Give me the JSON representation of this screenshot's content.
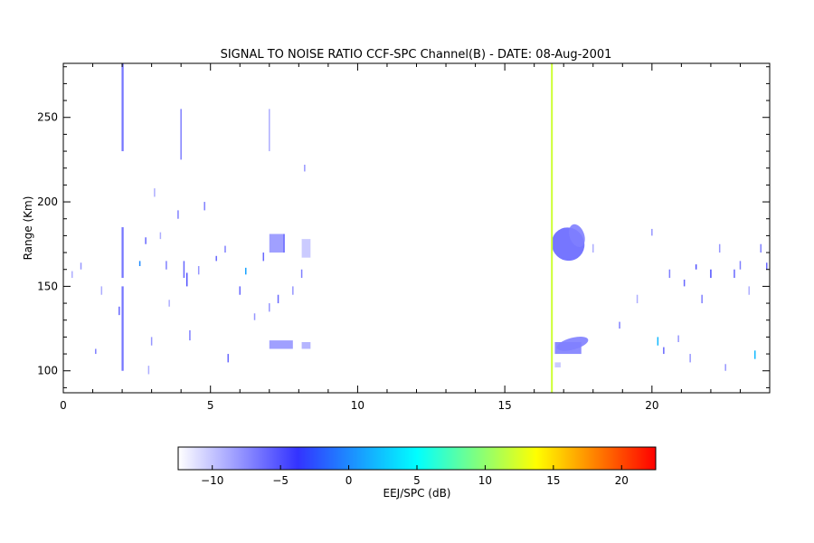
{
  "chart_data": {
    "type": "heatmap",
    "title": "SIGNAL TO NOISE RATIO CCF-SPC Channel(B) - DATE: 08-Aug-2001",
    "xlabel": "",
    "ylabel": "Range (Km)",
    "xlim": [
      0,
      24
    ],
    "ylim": [
      87,
      282
    ],
    "xticks": [
      0,
      5,
      10,
      15,
      20
    ],
    "yticks": [
      100,
      150,
      200,
      250
    ],
    "x_minor_step": 1,
    "y_minor_step": 10,
    "colorbar": {
      "label": "EEJ/SPC (dB)",
      "range": [
        -12.5,
        22.5
      ],
      "ticks": [
        -10,
        -5,
        0,
        5,
        10,
        15,
        20
      ],
      "colors": [
        "#ffffff",
        "#3333ff",
        "#00ffff",
        "#ffff00",
        "#ff0000"
      ]
    },
    "vertical_lines": [
      {
        "x": 16.6,
        "value": 12
      }
    ],
    "rects": [
      {
        "x": [
          1.98,
          2.05
        ],
        "y": [
          100,
          150
        ],
        "value": -6
      },
      {
        "x": [
          1.98,
          2.05
        ],
        "y": [
          155,
          185
        ],
        "value": -6
      },
      {
        "x": [
          1.98,
          2.05
        ],
        "y": [
          230,
          282
        ],
        "value": -6
      },
      {
        "x": [
          16.7,
          17.6
        ],
        "y": [
          110,
          117
        ],
        "value": -7
      },
      {
        "x": [
          16.7,
          16.9
        ],
        "y": [
          102,
          105
        ],
        "value": -10
      },
      {
        "x": [
          7.0,
          7.8
        ],
        "y": [
          113,
          118
        ],
        "value": -8
      },
      {
        "x": [
          8.1,
          8.4
        ],
        "y": [
          113,
          117
        ],
        "value": -9
      },
      {
        "x": [
          8.1,
          8.4
        ],
        "y": [
          167,
          178
        ],
        "value": -10
      },
      {
        "x": [
          7.0,
          7.5
        ],
        "y": [
          170,
          181
        ],
        "value": -8
      }
    ],
    "blobs": [
      {
        "cx": 17.15,
        "cy": 175,
        "rx": 0.55,
        "ry": 10,
        "rotate": -35,
        "value": -6
      },
      {
        "cx": 17.45,
        "cy": 180,
        "rx": 0.25,
        "ry": 7,
        "rotate": -20,
        "value": -7
      },
      {
        "cx": 17.3,
        "cy": 116,
        "rx": 0.55,
        "ry": 3.5,
        "rotate": -15,
        "value": -7
      }
    ],
    "streaks": [
      {
        "x": 0.3,
        "y": [
          155,
          159
        ],
        "value": -9
      },
      {
        "x": 0.6,
        "y": [
          160,
          164
        ],
        "value": -8
      },
      {
        "x": 1.1,
        "y": [
          110,
          113
        ],
        "value": -7
      },
      {
        "x": 1.3,
        "y": [
          145,
          150
        ],
        "value": -9
      },
      {
        "x": 1.9,
        "y": [
          133,
          138
        ],
        "value": -6
      },
      {
        "x": 2.6,
        "y": [
          162,
          165
        ],
        "value": 0
      },
      {
        "x": 2.8,
        "y": [
          175,
          179
        ],
        "value": -6
      },
      {
        "x": 2.9,
        "y": [
          98,
          103
        ],
        "value": -9
      },
      {
        "x": 3.0,
        "y": [
          115,
          120
        ],
        "value": -8
      },
      {
        "x": 3.1,
        "y": [
          203,
          208
        ],
        "value": -9
      },
      {
        "x": 3.3,
        "y": [
          178,
          182
        ],
        "value": -9
      },
      {
        "x": 3.5,
        "y": [
          160,
          165
        ],
        "value": -7
      },
      {
        "x": 3.6,
        "y": [
          138,
          142
        ],
        "value": -9
      },
      {
        "x": 3.9,
        "y": [
          190,
          195
        ],
        "value": -7
      },
      {
        "x": 4.0,
        "y": [
          225,
          255
        ],
        "value": -7
      },
      {
        "x": 4.1,
        "y": [
          155,
          165
        ],
        "value": -6
      },
      {
        "x": 4.2,
        "y": [
          150,
          158
        ],
        "value": -5
      },
      {
        "x": 4.3,
        "y": [
          118,
          124
        ],
        "value": -7
      },
      {
        "x": 4.6,
        "y": [
          157,
          162
        ],
        "value": -8
      },
      {
        "x": 4.8,
        "y": [
          195,
          200
        ],
        "value": -7
      },
      {
        "x": 5.2,
        "y": [
          165,
          168
        ],
        "value": -6
      },
      {
        "x": 5.5,
        "y": [
          170,
          174
        ],
        "value": -7
      },
      {
        "x": 5.6,
        "y": [
          105,
          110
        ],
        "value": -6
      },
      {
        "x": 6.0,
        "y": [
          145,
          150
        ],
        "value": -6
      },
      {
        "x": 6.2,
        "y": [
          157,
          161
        ],
        "value": 1
      },
      {
        "x": 6.5,
        "y": [
          130,
          134
        ],
        "value": -8
      },
      {
        "x": 6.8,
        "y": [
          165,
          170
        ],
        "value": -6
      },
      {
        "x": 7.0,
        "y": [
          135,
          140
        ],
        "value": -8
      },
      {
        "x": 7.0,
        "y": [
          230,
          255
        ],
        "value": -9
      },
      {
        "x": 7.3,
        "y": [
          140,
          145
        ],
        "value": -6
      },
      {
        "x": 7.5,
        "y": [
          170,
          181
        ],
        "value": -6
      },
      {
        "x": 7.8,
        "y": [
          145,
          150
        ],
        "value": -8
      },
      {
        "x": 8.1,
        "y": [
          155,
          160
        ],
        "value": -7
      },
      {
        "x": 8.2,
        "y": [
          218,
          222
        ],
        "value": -8
      },
      {
        "x": 18.0,
        "y": [
          170,
          175
        ],
        "value": -9
      },
      {
        "x": 18.9,
        "y": [
          125,
          129
        ],
        "value": -7
      },
      {
        "x": 19.5,
        "y": [
          140,
          145
        ],
        "value": -9
      },
      {
        "x": 20.0,
        "y": [
          180,
          184
        ],
        "value": -8
      },
      {
        "x": 20.2,
        "y": [
          115,
          120
        ],
        "value": 2
      },
      {
        "x": 20.4,
        "y": [
          110,
          114
        ],
        "value": -6
      },
      {
        "x": 20.6,
        "y": [
          155,
          160
        ],
        "value": -7
      },
      {
        "x": 20.9,
        "y": [
          117,
          121
        ],
        "value": -8
      },
      {
        "x": 21.1,
        "y": [
          150,
          154
        ],
        "value": -6
      },
      {
        "x": 21.3,
        "y": [
          105,
          110
        ],
        "value": -8
      },
      {
        "x": 21.5,
        "y": [
          160,
          163
        ],
        "value": -5
      },
      {
        "x": 21.7,
        "y": [
          140,
          145
        ],
        "value": -7
      },
      {
        "x": 22.0,
        "y": [
          155,
          160
        ],
        "value": -5
      },
      {
        "x": 22.3,
        "y": [
          170,
          175
        ],
        "value": -8
      },
      {
        "x": 22.5,
        "y": [
          100,
          104
        ],
        "value": -8
      },
      {
        "x": 22.8,
        "y": [
          155,
          160
        ],
        "value": -6
      },
      {
        "x": 23.0,
        "y": [
          160,
          165
        ],
        "value": -7
      },
      {
        "x": 23.3,
        "y": [
          145,
          150
        ],
        "value": -9
      },
      {
        "x": 23.5,
        "y": [
          107,
          112
        ],
        "value": 2
      },
      {
        "x": 23.7,
        "y": [
          170,
          175
        ],
        "value": -7
      },
      {
        "x": 23.9,
        "y": [
          160,
          164
        ],
        "value": -6
      }
    ]
  }
}
